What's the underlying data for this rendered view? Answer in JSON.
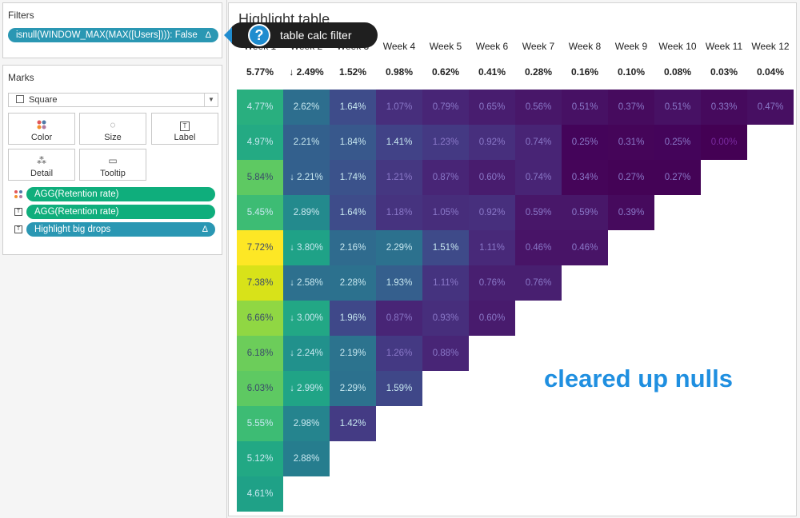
{
  "filters": {
    "title": "Filters",
    "pill": "isnull(WINDOW_MAX(MAX([Users]))): False",
    "pill_delta": "Δ"
  },
  "marks": {
    "title": "Marks",
    "mark_type": "Square",
    "buttons": {
      "color": "Color",
      "size": "Size",
      "label": "Label",
      "detail": "Detail",
      "tooltip": "Tooltip"
    },
    "icons": {
      "size": "◌",
      "label": "T",
      "detail": "⁂",
      "tooltip": "▭"
    },
    "fields": [
      {
        "text": "AGG(Retention rate)",
        "icon": "color-dots-icon",
        "delta": ""
      },
      {
        "text": "AGG(Retention rate)",
        "icon": "text-icon",
        "delta": ""
      },
      {
        "text": "Highlight big drops",
        "icon": "text-icon",
        "delta": "Δ"
      }
    ]
  },
  "callout": {
    "icon": "?",
    "text": "table calc filter"
  },
  "viz": {
    "title": "Highlight table",
    "headers": [
      "Week 1",
      "Week 2",
      "Week 3",
      "Week 4",
      "Week 5",
      "Week 6",
      "Week 7",
      "Week 8",
      "Week 9",
      "Week 10",
      "Week 11",
      "Week 12"
    ],
    "totals": [
      "5.77%",
      "↓ 2.49%",
      "1.52%",
      "0.98%",
      "0.62%",
      "0.41%",
      "0.28%",
      "0.16%",
      "0.10%",
      "0.08%",
      "0.03%",
      "0.04%"
    ],
    "rows": [
      [
        "4.77%",
        "2.62%",
        "1.64%",
        "1.07%",
        "0.79%",
        "0.65%",
        "0.56%",
        "0.51%",
        "0.37%",
        "0.51%",
        "0.33%",
        "0.47%"
      ],
      [
        "4.97%",
        "2.21%",
        "1.84%",
        "1.41%",
        "1.23%",
        "0.92%",
        "0.74%",
        "0.25%",
        "0.31%",
        "0.25%",
        "0.00%"
      ],
      [
        "5.84%",
        "↓ 2.21%",
        "1.74%",
        "1.21%",
        "0.87%",
        "0.60%",
        "0.74%",
        "0.34%",
        "0.27%",
        "0.27%"
      ],
      [
        "5.45%",
        "2.89%",
        "1.64%",
        "1.18%",
        "1.05%",
        "0.92%",
        "0.59%",
        "0.59%",
        "0.39%"
      ],
      [
        "7.72%",
        "↓ 3.80%",
        "2.16%",
        "2.29%",
        "1.51%",
        "1.11%",
        "0.46%",
        "0.46%"
      ],
      [
        "7.38%",
        "↓ 2.58%",
        "2.28%",
        "1.93%",
        "1.11%",
        "0.76%",
        "0.76%"
      ],
      [
        "6.66%",
        "↓ 3.00%",
        "1.96%",
        "0.87%",
        "0.93%",
        "0.60%"
      ],
      [
        "6.18%",
        "↓ 2.24%",
        "2.19%",
        "1.26%",
        "0.88%"
      ],
      [
        "6.03%",
        "↓ 2.99%",
        "2.29%",
        "1.59%"
      ],
      [
        "5.55%",
        "2.98%",
        "1.42%"
      ],
      [
        "5.12%",
        "2.88%"
      ],
      [
        "4.61%"
      ]
    ],
    "colors": [
      [
        "#29af7f",
        "#2d6e8e",
        "#3e4c8a",
        "#472e7c",
        "#482576",
        "#481d6f",
        "#481769",
        "#471164",
        "#460b5e",
        "#471164",
        "#460a5d",
        "#470f62"
      ],
      [
        "#24aa83",
        "#33608d",
        "#38588c",
        "#414287",
        "#443983",
        "#472f7d",
        "#482475",
        "#44045a",
        "#450559",
        "#44045a",
        "#440154"
      ],
      [
        "#5ec962",
        "#33608d",
        "#3b528b",
        "#453781",
        "#482576",
        "#481c6e",
        "#482475",
        "#450559",
        "#440356",
        "#440356"
      ],
      [
        "#3dbc74",
        "#238a8d",
        "#3e4c8a",
        "#46337f",
        "#472d7b",
        "#472f7d",
        "#481769",
        "#481769",
        "#460a5d"
      ],
      [
        "#fde725",
        "#1fa287",
        "#2f6b8e",
        "#2c718e",
        "#3e4a89",
        "#482979",
        "#481467",
        "#481467"
      ],
      [
        "#d8e219",
        "#2d708e",
        "#2c718e",
        "#355f8d",
        "#45337f",
        "#481f70",
        "#481f70"
      ],
      [
        "#90d743",
        "#22a785",
        "#3f4889",
        "#482576",
        "#472e7c",
        "#481b6d"
      ],
      [
        "#6ccd5a",
        "#21918c",
        "#2c738e",
        "#443983",
        "#482576"
      ],
      [
        "#5ec962",
        "#20a486",
        "#2c718e",
        "#3f4788"
      ],
      [
        "#3dbc74",
        "#25848e",
        "#443b84"
      ],
      [
        "#22a884",
        "#267d8e"
      ],
      [
        "#1fa187"
      ]
    ],
    "annotation": "cleared up nulls"
  }
}
